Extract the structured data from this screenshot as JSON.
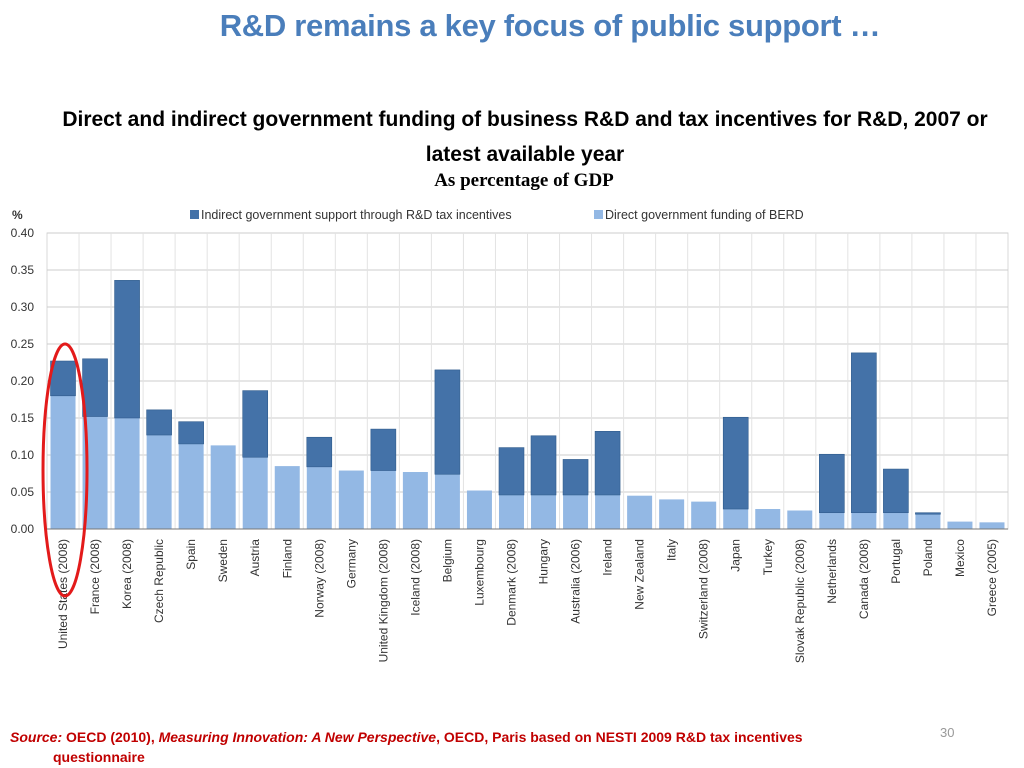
{
  "slide": {
    "title": "R&D remains a key focus of public support …",
    "page_number": "30"
  },
  "source": {
    "label": "Source:",
    "text1": " OECD (2010), ",
    "title": "Measuring Innovation: A New Perspective",
    "text2": ", OECD, Paris based on NESTI 2009 R&D tax incentives",
    "text3": "questionnaire"
  },
  "colors": {
    "indirect": "#4472a8",
    "direct": "#93b8e4",
    "highlight": "#e31a1a",
    "grid": "#cccccc"
  },
  "chart_data": {
    "type": "bar",
    "stacked": true,
    "title": "Direct and indirect government funding of business R&D and tax incentives for R&D, 2007 or latest available year",
    "subtitle": "As percentage of GDP",
    "ylabel": "%",
    "ylim": [
      0,
      0.4
    ],
    "yticks": [
      "0.00",
      "0.05",
      "0.10",
      "0.15",
      "0.20",
      "0.25",
      "0.30",
      "0.35",
      "0.40"
    ],
    "grid": true,
    "legend_position": "top",
    "categories": [
      "United States (2008)",
      "France (2008)",
      "Korea (2008)",
      "Czech Republic",
      "Spain",
      "Sweden",
      "Austria",
      "Finland",
      "Norway (2008)",
      "Germany",
      "United Kingdom (2008)",
      "Iceland (2008)",
      "Belgium",
      "Luxembourg",
      "Denmark (2008)",
      "Hungary",
      "Australia (2006)",
      "Ireland",
      "New Zealand",
      "Italy",
      "Switzerland (2008)",
      "Japan",
      "Turkey",
      "Slovak Republic (2008)",
      "Netherlands",
      "Canada (2008)",
      "Portugal",
      "Poland",
      "Mexico",
      "Greece (2005)"
    ],
    "series": [
      {
        "name": "Direct government funding of BERD",
        "values": [
          0.18,
          0.152,
          0.15,
          0.127,
          0.115,
          0.113,
          0.097,
          0.085,
          0.084,
          0.079,
          0.079,
          0.077,
          0.074,
          0.052,
          0.046,
          0.046,
          0.046,
          0.046,
          0.045,
          0.04,
          0.037,
          0.027,
          0.027,
          0.025,
          0.022,
          0.022,
          0.022,
          0.02,
          0.01,
          0.009
        ]
      },
      {
        "name": "Indirect government support through R&D tax incentives",
        "values": [
          0.047,
          0.078,
          0.186,
          0.034,
          0.03,
          0.0,
          0.09,
          0.0,
          0.04,
          0.0,
          0.056,
          0.0,
          0.141,
          0.0,
          0.064,
          0.08,
          0.048,
          0.086,
          0.0,
          0.0,
          0.0,
          0.124,
          0.0,
          0.0,
          0.079,
          0.216,
          0.059,
          0.002,
          0.0,
          0.0
        ]
      }
    ],
    "highlight": "United States (2008)"
  }
}
